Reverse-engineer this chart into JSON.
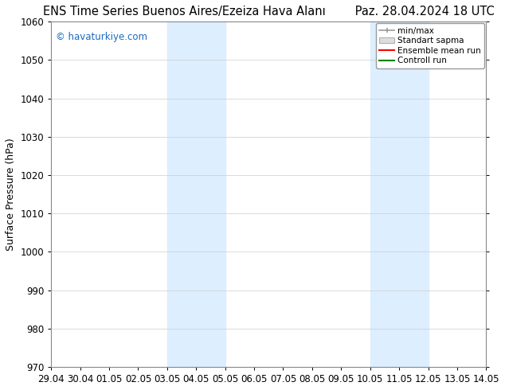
{
  "title": "ENS Time Series Buenos Aires/Ezeiza Hava Alanı        Paz. 28.04.2024 18 UTC",
  "ylabel": "Surface Pressure (hPa)",
  "watermark": "© havaturkiye.com",
  "watermark_color": "#1a6abf",
  "ylim": [
    970,
    1060
  ],
  "yticks": [
    970,
    980,
    990,
    1000,
    1010,
    1020,
    1030,
    1040,
    1050,
    1060
  ],
  "xtick_labels": [
    "29.04",
    "30.04",
    "01.05",
    "02.05",
    "03.05",
    "04.05",
    "05.05",
    "06.05",
    "07.05",
    "08.05",
    "09.05",
    "10.05",
    "11.05",
    "12.05",
    "13.05",
    "14.05"
  ],
  "x_values": [
    0,
    1,
    2,
    3,
    4,
    5,
    6,
    7,
    8,
    9,
    10,
    11,
    12,
    13,
    14,
    15
  ],
  "shaded_regions": [
    {
      "xmin": 4,
      "xmax": 6,
      "color": "#ddeeff"
    },
    {
      "xmin": 11,
      "xmax": 13,
      "color": "#ddeeff"
    }
  ],
  "bg_color": "#ffffff",
  "plot_bg_color": "#ffffff",
  "grid_color": "#cccccc",
  "legend_items": [
    {
      "label": "min/max",
      "color": "#aaaaaa",
      "style": "errorbar"
    },
    {
      "label": "Standart sapma",
      "color": "#cccccc",
      "style": "bar"
    },
    {
      "label": "Ensemble mean run",
      "color": "red",
      "style": "line"
    },
    {
      "label": "Controll run",
      "color": "green",
      "style": "line"
    }
  ],
  "title_fontsize": 10.5,
  "axis_fontsize": 9,
  "tick_fontsize": 8.5
}
